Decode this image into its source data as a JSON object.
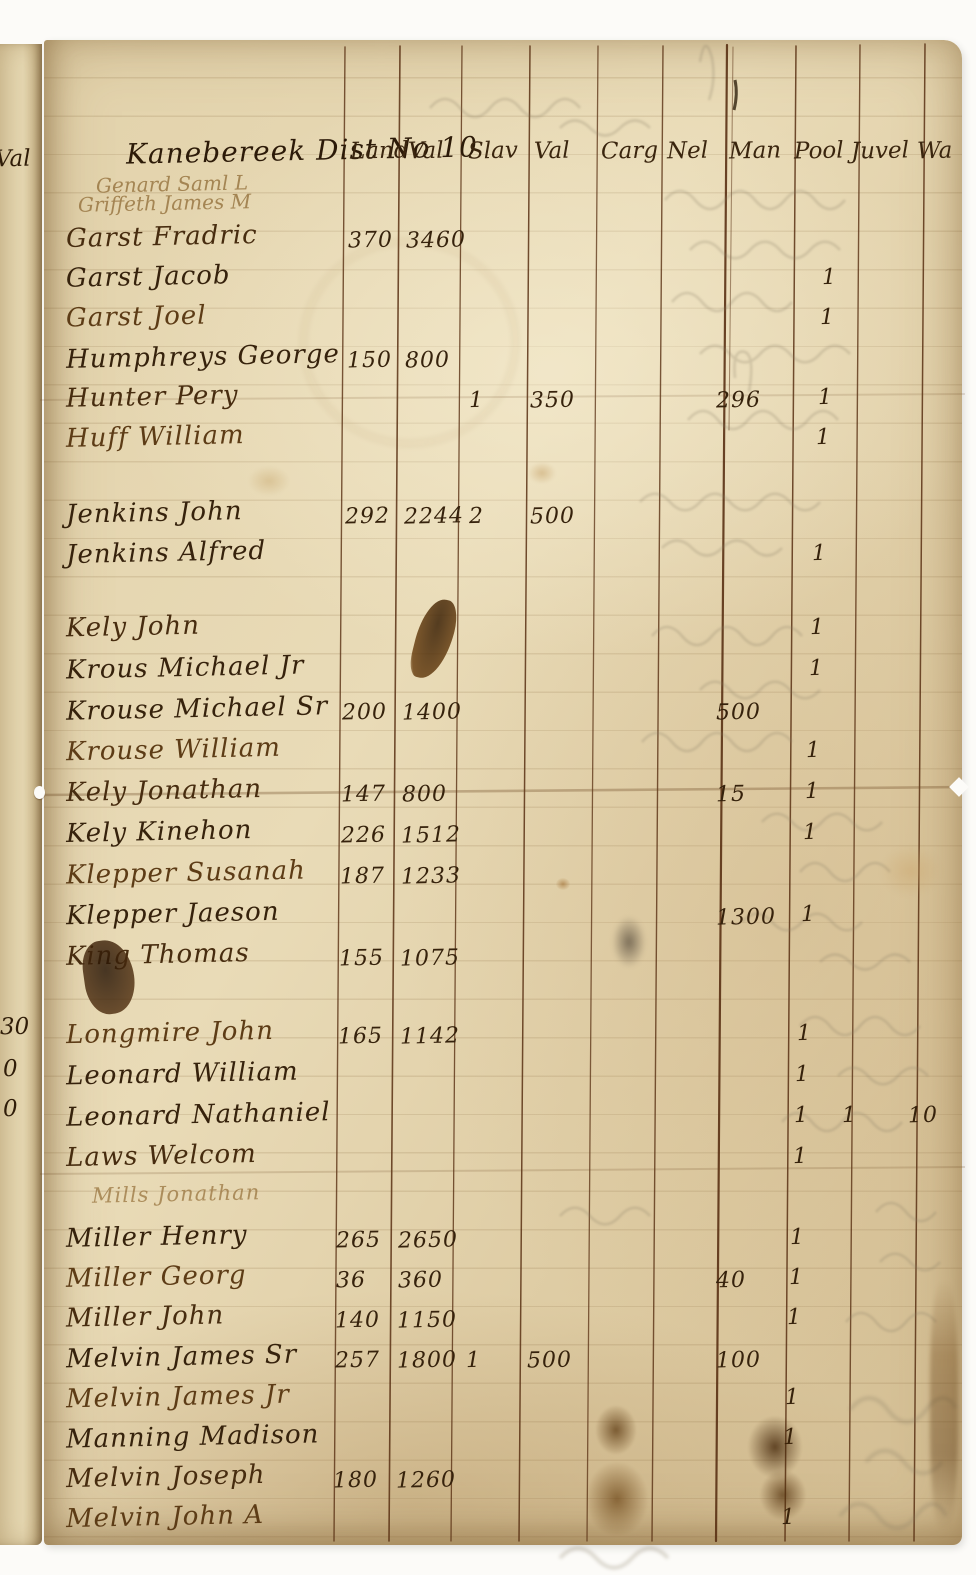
{
  "document": {
    "margin": {
      "val_label": "Val",
      "numbers": [
        "30",
        "0",
        "0"
      ]
    },
    "header": {
      "district_title": "Kanebereek Dist No 10",
      "columns": [
        "Land",
        "Val",
        "Slav",
        "Val",
        "Carg",
        "Nel",
        "Man",
        "Pool",
        "Juvel",
        "Wa"
      ],
      "faint_names": [
        "Genard Saml L",
        "Griffeth James M"
      ]
    },
    "groups": [
      {
        "rows": [
          {
            "name": "Garst Fradric",
            "land": "370",
            "land_val": "3460"
          },
          {
            "name": "Garst Jacob",
            "pool": "1"
          },
          {
            "name": "Garst Joel",
            "pool": "1"
          },
          {
            "name": "Humphreys George",
            "land": "150",
            "land_val": "800"
          },
          {
            "name": "Hunter Pery",
            "slav": "1",
            "slav_val": "350",
            "man": "296",
            "pool": "1"
          },
          {
            "name": "Huff William",
            "pool": "1"
          }
        ]
      },
      {
        "rows": [
          {
            "name": "Jenkins John",
            "land": "292",
            "land_val": "2244",
            "slav": "2",
            "slav_val": "500"
          },
          {
            "name": "Jenkins Alfred",
            "pool": "1"
          }
        ]
      },
      {
        "rows": [
          {
            "name": "Kely John",
            "pool": "1"
          },
          {
            "name": "Krous Michael Jr",
            "pool": "1"
          },
          {
            "name": "Krouse Michael Sr",
            "land": "200",
            "land_val": "1400",
            "man": "500"
          },
          {
            "name": "Krouse William",
            "pool": "1"
          },
          {
            "name": "Kely Jonathan",
            "land": "147",
            "land_val": "800",
            "man": "15",
            "pool": "1"
          },
          {
            "name": "Kely Kinehon",
            "land": "226",
            "land_val": "1512",
            "pool": "1"
          },
          {
            "name": "Klepper Susanah",
            "land": "187",
            "land_val": "1233"
          },
          {
            "name": "Klepper Jaeson",
            "man": "1300",
            "pool": "1"
          },
          {
            "name": "King Thomas",
            "land": "155",
            "land_val": "1075"
          }
        ]
      },
      {
        "rows": [
          {
            "name": "Longmire John",
            "land": "165",
            "land_val": "1142",
            "pool": "1"
          },
          {
            "name": "Leonard William",
            "pool": "1"
          },
          {
            "name": "Leonard Nathaniel",
            "pool": "1",
            "juvel": "1",
            "wa": "10"
          },
          {
            "name": "Laws Welcom",
            "pool": "1"
          }
        ]
      },
      {
        "rows": [
          {
            "name": "Mills Jonathan",
            "faint": true
          },
          {
            "name": "Miller Henry",
            "land": "265",
            "land_val": "2650",
            "pool": "1"
          },
          {
            "name": "Miller Georg",
            "land": "36",
            "land_val": "360",
            "man": "40",
            "pool": "1"
          },
          {
            "name": "Miller John",
            "land": "140",
            "land_val": "1150",
            "pool": "1"
          },
          {
            "name": "Melvin James Sr",
            "land": "257",
            "land_val": "1800",
            "slav": "1",
            "slav_val": "500",
            "man": "100"
          },
          {
            "name": "Melvin James Jr",
            "pool": "1"
          },
          {
            "name": "Manning Madison",
            "pool": "1"
          },
          {
            "name": "Melvin Joseph",
            "land": "180",
            "land_val": "1260"
          },
          {
            "name": "Melvin John A",
            "pool": "1"
          }
        ]
      }
    ]
  }
}
